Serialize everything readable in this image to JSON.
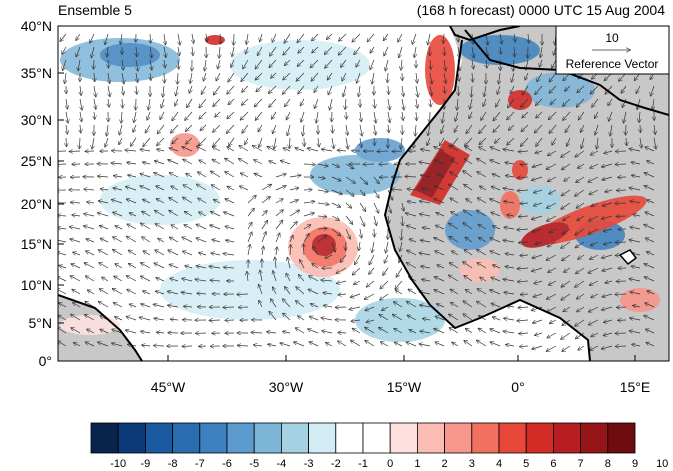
{
  "header": {
    "left_title": "Ensemble 5",
    "right_title": "(168 h forecast) 0000 UTC 15 Aug 2004"
  },
  "map": {
    "lat_labels": [
      "40°N",
      "35°N",
      "30°N",
      "25°N",
      "20°N",
      "15°N",
      "10°N",
      "5°N",
      "0°"
    ],
    "lon_labels": [
      "45°W",
      "30°W",
      "15°W",
      "0°",
      "15°E"
    ],
    "extent": {
      "lon_min": -58,
      "lon_max": 19,
      "lat_min": 0,
      "lat_max": 40
    },
    "land_color": "#c8c8c8",
    "coast_color": "#000000"
  },
  "reference_vector": {
    "magnitude_label": "10",
    "caption": "Reference Vector"
  },
  "colorbar": {
    "labels": [
      "-10",
      "-9",
      "-8",
      "-7",
      "-6",
      "-5",
      "-4",
      "-3",
      "-2",
      "-1",
      "0",
      "1",
      "2",
      "3",
      "4",
      "5",
      "6",
      "7",
      "8",
      "9",
      "10"
    ],
    "colors": [
      "#08234c",
      "#0b3a78",
      "#1a5aa0",
      "#2a6cb0",
      "#3d82c0",
      "#5b9bcd",
      "#7db6d9",
      "#a4d2e2",
      "#d2ecf5",
      "#ffffff",
      "#ffffff",
      "#fde0de",
      "#fbbcb3",
      "#f7968a",
      "#f2705f",
      "#e8483a",
      "#d42b27",
      "#b81d22",
      "#951418",
      "#6f0c10"
    ]
  },
  "colors": {
    "blue_anomaly": "#5b9bcd",
    "red_anomaly": "#d42b27"
  }
}
